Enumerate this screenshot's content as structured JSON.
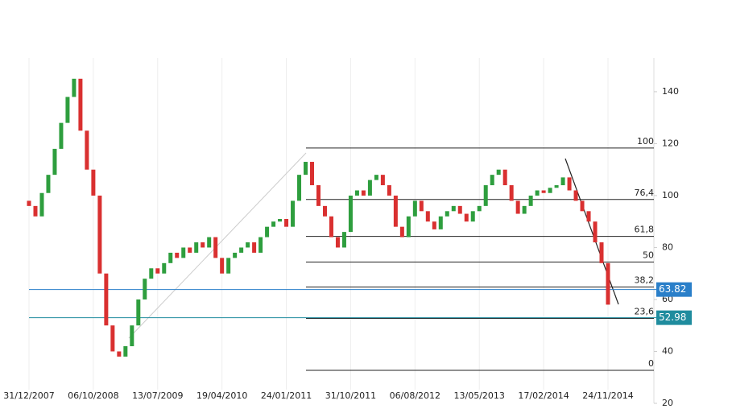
{
  "chart_data": {
    "type": "candlestick",
    "categories": [
      "31/12/2007",
      null,
      null,
      null,
      null,
      null,
      null,
      null,
      null,
      null,
      "06/10/2008",
      null,
      null,
      null,
      null,
      null,
      null,
      null,
      null,
      null,
      "13/07/2009",
      null,
      null,
      null,
      null,
      null,
      null,
      null,
      null,
      null,
      "19/04/2010",
      null,
      null,
      null,
      null,
      null,
      null,
      null,
      null,
      null,
      "24/01/2011",
      null,
      null,
      null,
      null,
      null,
      null,
      null,
      null,
      null,
      "31/10/2011",
      null,
      null,
      null,
      null,
      null,
      null,
      null,
      null,
      null,
      "06/08/2012",
      null,
      null,
      null,
      null,
      null,
      null,
      null,
      null,
      null,
      "13/05/2013",
      null,
      null,
      null,
      null,
      null,
      null,
      null,
      null,
      null,
      "17/02/2014",
      null,
      null,
      null,
      null,
      null,
      null,
      null,
      null,
      null,
      "24/11/2014"
    ],
    "open": [
      98,
      96,
      92,
      101,
      108,
      118,
      128,
      138,
      145,
      125,
      110,
      100,
      70,
      50,
      40,
      38,
      42,
      50,
      60,
      68,
      72,
      70,
      74,
      78,
      76,
      80,
      78,
      82,
      80,
      84,
      76,
      70,
      76,
      78,
      80,
      82,
      78,
      84,
      88,
      90,
      91,
      88,
      98,
      108,
      113,
      104,
      96,
      92,
      84,
      80,
      86,
      100,
      102,
      100,
      106,
      108,
      104,
      100,
      88,
      84,
      92,
      98,
      94,
      90,
      87,
      92,
      94,
      96,
      93,
      90,
      94,
      96,
      104,
      108,
      110,
      104,
      98,
      93,
      96,
      100,
      102,
      101,
      103,
      104,
      107,
      102,
      98,
      94,
      90,
      82,
      74
    ],
    "close": [
      96,
      92,
      101,
      108,
      118,
      128,
      138,
      145,
      125,
      110,
      100,
      70,
      50,
      40,
      38,
      42,
      50,
      60,
      68,
      72,
      70,
      74,
      78,
      76,
      80,
      78,
      82,
      80,
      84,
      76,
      70,
      76,
      78,
      80,
      82,
      78,
      84,
      88,
      90,
      91,
      88,
      98,
      108,
      113,
      104,
      96,
      92,
      84,
      80,
      86,
      100,
      102,
      100,
      106,
      108,
      104,
      100,
      88,
      84,
      92,
      98,
      94,
      90,
      87,
      92,
      94,
      96,
      93,
      90,
      94,
      96,
      104,
      108,
      110,
      104,
      98,
      93,
      96,
      100,
      102,
      101,
      103,
      104,
      107,
      102,
      98,
      94,
      90,
      82,
      74,
      58
    ],
    "up_color": "#2e9e3e",
    "down_color": "#d93030",
    "ylim": [
      20,
      153
    ],
    "yticks": [
      20,
      40,
      60,
      80,
      100,
      120,
      140
    ],
    "fib_levels": [
      {
        "label": "100",
        "value": 118.3
      },
      {
        "label": "76,4",
        "value": 98.5
      },
      {
        "label": "61,8",
        "value": 84.3
      },
      {
        "label": "50",
        "value": 74.4
      },
      {
        "label": "38,2",
        "value": 64.8
      },
      {
        "label": "23,6",
        "value": 52.7
      },
      {
        "label": "0",
        "value": 32.7
      }
    ],
    "price_lines": [
      {
        "value": 63.82,
        "color": "#2a7fc9"
      },
      {
        "value": 52.98,
        "color": "#1f8c9e"
      }
    ],
    "grid": true
  }
}
